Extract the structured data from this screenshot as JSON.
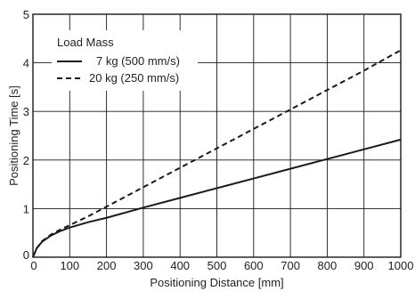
{
  "chart_data": {
    "type": "line",
    "title": "",
    "xlabel": "Positioning Distance [mm]",
    "ylabel": "Positioning Time [s]",
    "xlim": [
      0,
      1000
    ],
    "ylim": [
      0,
      5
    ],
    "x_ticks": [
      0,
      100,
      200,
      300,
      400,
      500,
      600,
      700,
      800,
      900,
      1000
    ],
    "y_ticks": [
      0,
      1,
      2,
      3,
      4,
      5
    ],
    "grid": true,
    "legend": {
      "title": "Load Mass",
      "placement": "top-left"
    },
    "series": [
      {
        "name": "7 kg (500 mm/s)",
        "style": "solid",
        "color": "#1a1a1a",
        "x": [
          0,
          10,
          25,
          50,
          75,
          100,
          150,
          200,
          300,
          400,
          500,
          600,
          700,
          800,
          900,
          1000
        ],
        "y": [
          0,
          0.18,
          0.32,
          0.45,
          0.54,
          0.61,
          0.72,
          0.81,
          1.02,
          1.22,
          1.42,
          1.62,
          1.82,
          2.02,
          2.22,
          2.42
        ]
      },
      {
        "name": "20 kg (250 mm/s)",
        "style": "dashed",
        "color": "#1a1a1a",
        "x": [
          0,
          10,
          25,
          50,
          75,
          100,
          150,
          200,
          300,
          400,
          500,
          600,
          700,
          800,
          900,
          1000
        ],
        "y": [
          0,
          0.18,
          0.33,
          0.47,
          0.57,
          0.66,
          0.84,
          1.04,
          1.44,
          1.84,
          2.24,
          2.64,
          3.04,
          3.44,
          3.84,
          4.26
        ]
      }
    ]
  }
}
